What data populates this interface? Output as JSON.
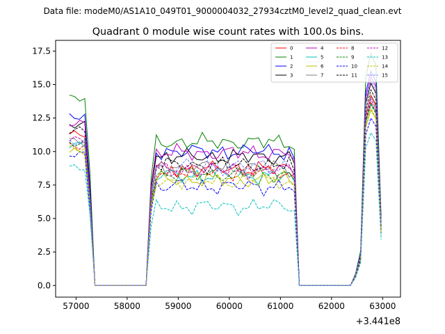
{
  "chart_data": {
    "type": "line",
    "suptitle": "Data file: modeM0/AS1A10_049T01_9000004032_27934cztM0_level2_quad_clean.evt",
    "title": "Quadrant 0 module wise count rates with 100.0s bins.",
    "xlabel": "",
    "ylabel": "",
    "x_offset_label": "+3.441e8",
    "xlim": [
      56600,
      63350
    ],
    "ylim": [
      -0.87,
      18.3
    ],
    "xticks": [
      57000,
      58000,
      59000,
      60000,
      61000,
      62000,
      63000
    ],
    "xtick_labels": [
      "57000",
      "58000",
      "59000",
      "60000",
      "61000",
      "62000",
      "63000"
    ],
    "yticks": [
      0.0,
      2.5,
      5.0,
      7.5,
      10.0,
      12.5,
      15.0,
      17.5
    ],
    "ytick_labels": [
      "0.0",
      "2.5",
      "5.0",
      "7.5",
      "10.0",
      "12.5",
      "15.0",
      "17.5"
    ],
    "legend_position": "top-right",
    "x_start": 56870,
    "x_step": 100,
    "segments": [
      {
        "name": "gti1",
        "start_index": 0,
        "shape": [
          1,
          1,
          1,
          1,
          0.6,
          0
        ]
      },
      {
        "name": "gap1",
        "start_index": 6,
        "zeros": 9
      },
      {
        "name": "gti2",
        "start_index": 15,
        "n": 27,
        "lead": [
          0,
          0.75
        ],
        "trail": [
          0.95,
          0,
          0
        ]
      },
      {
        "name": "gap2",
        "start_index": 45,
        "zeros": 9
      },
      {
        "name": "gti3",
        "start_index": 54,
        "shape": [
          0.05,
          0.15,
          0.9,
          1,
          0.95,
          0.3
        ]
      }
    ],
    "series": [
      {
        "name": "0",
        "color": "#ff0000",
        "dash": "solid",
        "g1": 11.3,
        "g2": 8.7,
        "g3": 14.2
      },
      {
        "name": "1",
        "color": "#008000",
        "dash": "solid",
        "g1": 14.0,
        "g2": 10.7,
        "g3": 17.3
      },
      {
        "name": "2",
        "color": "#0000ff",
        "dash": "solid",
        "g1": 12.6,
        "g2": 10.0,
        "g3": 16.0
      },
      {
        "name": "3",
        "color": "#000000",
        "dash": "solid",
        "g1": 12.0,
        "g2": 9.6,
        "g3": 15.1
      },
      {
        "name": "4",
        "color": "#bf00bf",
        "dash": "solid",
        "g1": 12.1,
        "g2": 9.9,
        "g3": 15.6
      },
      {
        "name": "5",
        "color": "#00bfbf",
        "dash": "solid",
        "g1": 10.5,
        "g2": 8.2,
        "g3": 13.6
      },
      {
        "name": "6",
        "color": "#bfbf00",
        "dash": "solid",
        "g1": 10.0,
        "g2": 7.9,
        "g3": 13.1
      },
      {
        "name": "7",
        "color": "#808080",
        "dash": "solid",
        "g1": 10.8,
        "g2": 8.8,
        "g3": 14.1
      },
      {
        "name": "8",
        "color": "#ff0000",
        "dash": "dashed",
        "g1": 10.4,
        "g2": 8.5,
        "g3": 13.7
      },
      {
        "name": "9",
        "color": "#008000",
        "dash": "dashed",
        "g1": 10.6,
        "g2": 8.3,
        "g3": 13.5
      },
      {
        "name": "10",
        "color": "#0000ff",
        "dash": "dashed",
        "g1": 9.8,
        "g2": 7.4,
        "g3": 12.5
      },
      {
        "name": "11",
        "color": "#000000",
        "dash": "dashed",
        "g1": 11.6,
        "g2": 9.0,
        "g3": 14.6
      },
      {
        "name": "12",
        "color": "#bf00bf",
        "dash": "dashed",
        "g1": 10.9,
        "g2": 8.6,
        "g3": 13.9
      },
      {
        "name": "13",
        "color": "#00bfbf",
        "dash": "dashed",
        "g1": 8.8,
        "g2": 5.9,
        "g3": 11.4
      },
      {
        "name": "14",
        "color": "#bfbf00",
        "dash": "dashed",
        "g1": 10.2,
        "g2": 7.8,
        "g3": 13.2
      },
      {
        "name": "15",
        "color": "#8080ff",
        "dash": "dashed",
        "g1": 10.7,
        "g2": 8.9,
        "g3": 15.3
      }
    ]
  }
}
